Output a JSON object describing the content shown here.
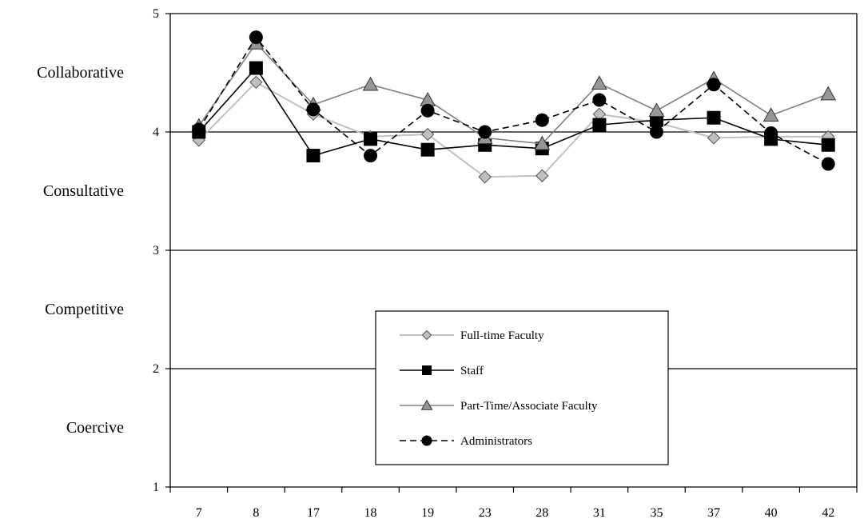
{
  "chart_data": {
    "type": "line",
    "categories": [
      "7",
      "8",
      "17",
      "18",
      "19",
      "23",
      "28",
      "31",
      "35",
      "37",
      "40",
      "42"
    ],
    "ylim": [
      1,
      5
    ],
    "yticks": [
      1,
      2,
      3,
      4,
      5
    ],
    "grid": true,
    "band_labels": [
      {
        "label": "Collaborative",
        "y": 4.5
      },
      {
        "label": "Consultative",
        "y": 3.5
      },
      {
        "label": "Competitive",
        "y": 2.5
      },
      {
        "label": "Coercive",
        "y": 1.5
      }
    ],
    "legend": {
      "placement": "center-bottom"
    },
    "series": [
      {
        "name": "Full-time Faculty",
        "color": "#c0c0c0",
        "marker": "diamond",
        "dash": "solid",
        "values": [
          3.93,
          4.42,
          4.15,
          3.96,
          3.98,
          3.62,
          3.63,
          4.15,
          4.08,
          3.95,
          3.96,
          3.96
        ]
      },
      {
        "name": "Staff",
        "color": "#000000",
        "marker": "square",
        "dash": "solid",
        "values": [
          4.0,
          4.54,
          3.8,
          3.94,
          3.85,
          3.89,
          3.86,
          4.06,
          4.1,
          4.12,
          3.94,
          3.89
        ]
      },
      {
        "name": "Part-Time/Associate Faculty",
        "color": "#808080",
        "marker": "triangle",
        "dash": "solid",
        "values": [
          4.05,
          4.75,
          4.23,
          4.4,
          4.27,
          3.95,
          3.9,
          4.41,
          4.18,
          4.45,
          4.14,
          4.32
        ]
      },
      {
        "name": "Administrators",
        "color": "#000000",
        "marker": "circle",
        "dash": "dashed",
        "values": [
          4.02,
          4.8,
          4.19,
          3.8,
          4.18,
          4.0,
          4.1,
          4.27,
          4.0,
          4.4,
          3.99,
          3.73
        ]
      }
    ]
  }
}
